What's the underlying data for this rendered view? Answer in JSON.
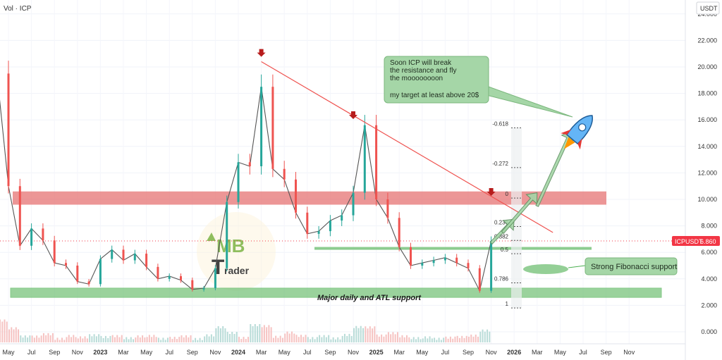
{
  "header": {
    "indicator_label": "Vol · ICP",
    "currency_label": "USDT"
  },
  "price_tag": {
    "symbol": "ICPUSDT",
    "value": "6.860",
    "color": "#f23645"
  },
  "watermark": {
    "text": "MB",
    "sub": "rader"
  },
  "colors": {
    "up": "#26a69a",
    "down": "#ef5350",
    "resistance": "#e57373",
    "support": "#81c784",
    "trend": "#ef5350"
  },
  "annotations": {
    "bubble_lines": [
      "Soon ICP will break",
      "the resistance and fly",
      "the moooooooon",
      "",
      "my target at least above 20$"
    ],
    "fib_support": "Strong Fibonacci support",
    "atl_support": "Major daily and ATL support"
  },
  "chart_data": {
    "type": "line",
    "title": "",
    "ylabel": "",
    "xlabel": "",
    "y_ticks": [
      "24.000",
      "22.000",
      "20.000",
      "18.000",
      "16.000",
      "14.000",
      "12.000",
      "10.000",
      "8.000",
      "6.000",
      "4.000",
      "2.000",
      "0.000"
    ],
    "ylim": [
      -0.6,
      25.5
    ],
    "x_ticks": [
      "May",
      "Jul",
      "Sep",
      "Nov",
      "2023",
      "Mar",
      "May",
      "Jul",
      "Sep",
      "Nov",
      "2024",
      "Mar",
      "May",
      "Jul",
      "Sep",
      "Nov",
      "2025",
      "Mar",
      "May",
      "Jul",
      "Sep",
      "Nov",
      "2026",
      "Mar",
      "May",
      "Jul",
      "Sep",
      "Nov"
    ],
    "x_tick_start": "2022-05",
    "price_series": {
      "name": "ICPUSDT",
      "x": [
        "2022-04",
        "2022-05",
        "2022-06",
        "2022-07",
        "2022-08",
        "2022-09",
        "2022-10",
        "2022-11",
        "2022-12",
        "2023-01",
        "2023-02",
        "2023-03",
        "2023-04",
        "2023-05",
        "2023-06",
        "2023-07",
        "2023-08",
        "2023-09",
        "2023-10",
        "2023-11",
        "2023-12",
        "2024-01",
        "2024-02",
        "2024-03",
        "2024-04",
        "2024-05",
        "2024-06",
        "2024-07",
        "2024-08",
        "2024-09",
        "2024-10",
        "2024-11",
        "2024-12",
        "2025-01",
        "2025-02",
        "2025-03",
        "2025-04",
        "2025-05",
        "2025-06",
        "2025-07",
        "2025-08",
        "2025-09",
        "2025-10",
        "2025-11"
      ],
      "y": [
        19.5,
        11.0,
        6.5,
        7.8,
        6.9,
        5.2,
        5.0,
        3.8,
        3.6,
        5.5,
        6.2,
        5.4,
        5.9,
        4.9,
        4.0,
        4.2,
        3.9,
        3.2,
        3.3,
        4.8,
        9.8,
        12.8,
        12.5,
        18.5,
        12.3,
        11.5,
        9.0,
        7.4,
        7.6,
        8.4,
        8.8,
        10.5,
        15.6,
        10.0,
        8.6,
        6.4,
        5.0,
        5.2,
        5.4,
        5.6,
        5.2,
        4.8,
        3.1,
        6.86
      ]
    },
    "levels": {
      "resistance_zone": [
        9.6,
        10.6
      ],
      "support_line": 6.3,
      "atl_support_zone": [
        2.6,
        3.3
      ]
    },
    "trendline": {
      "from": {
        "x": "2024-03",
        "y": 20.4
      },
      "to": {
        "x": "2026-01",
        "y": 7.5
      }
    },
    "fibonacci": [
      {
        "ratio": "-0.618",
        "price": 15.4
      },
      {
        "ratio": "-0.272",
        "price": 12.4
      },
      {
        "ratio": "0",
        "price": 10.1
      },
      {
        "ratio": "0.236",
        "price": 7.95
      },
      {
        "ratio": "0.382",
        "price": 6.9
      },
      {
        "ratio": "0.5",
        "price": 5.9
      },
      {
        "ratio": "0.786",
        "price": 3.7
      },
      {
        "ratio": "1",
        "price": 1.8
      }
    ],
    "peak_markers": [
      {
        "x": "2024-03",
        "y": 20.5
      },
      {
        "x": "2024-11",
        "y": 15.8
      },
      {
        "x": "2025-11",
        "y": 10.0
      }
    ],
    "projection_arrows": [
      {
        "from": {
          "x": "2025-11",
          "y": 6.7
        },
        "to": {
          "x": "2026-01",
          "y": 8.5
        }
      },
      {
        "from": {
          "x": "2025-12",
          "y": 7.5
        },
        "to": {
          "x": "2026-03",
          "y": 10.5
        }
      },
      {
        "from": {
          "x": "2026-03",
          "y": 9.5
        },
        "to": {
          "x": "2026-06",
          "y": 15.2
        }
      }
    ],
    "last_price": 6.86
  }
}
